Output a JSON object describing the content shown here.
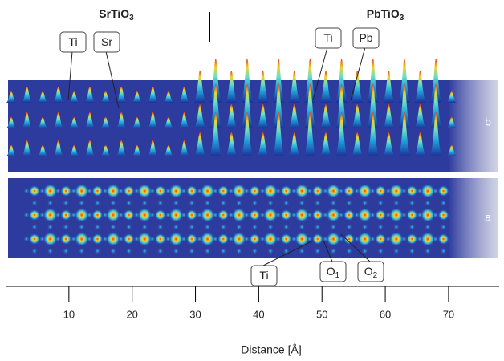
{
  "chart_data": {
    "type": "image",
    "titles": [
      {
        "text": "SrTiO",
        "sub": "3"
      },
      {
        "text": "PbTiO",
        "sub": "3"
      }
    ],
    "panel_labels": [
      "b",
      "a"
    ],
    "callouts": [
      {
        "text": "Ti"
      },
      {
        "text": "Sr"
      },
      {
        "text": "Ti"
      },
      {
        "text": "Pb"
      },
      {
        "text": "Ti"
      },
      {
        "text": "O",
        "sub": "1"
      },
      {
        "text": "O",
        "sub": "2"
      }
    ],
    "xlabel": "Distance [Å]",
    "xlim": [
      0,
      78
    ],
    "xticks": [
      10,
      20,
      30,
      40,
      50,
      60,
      70
    ]
  }
}
